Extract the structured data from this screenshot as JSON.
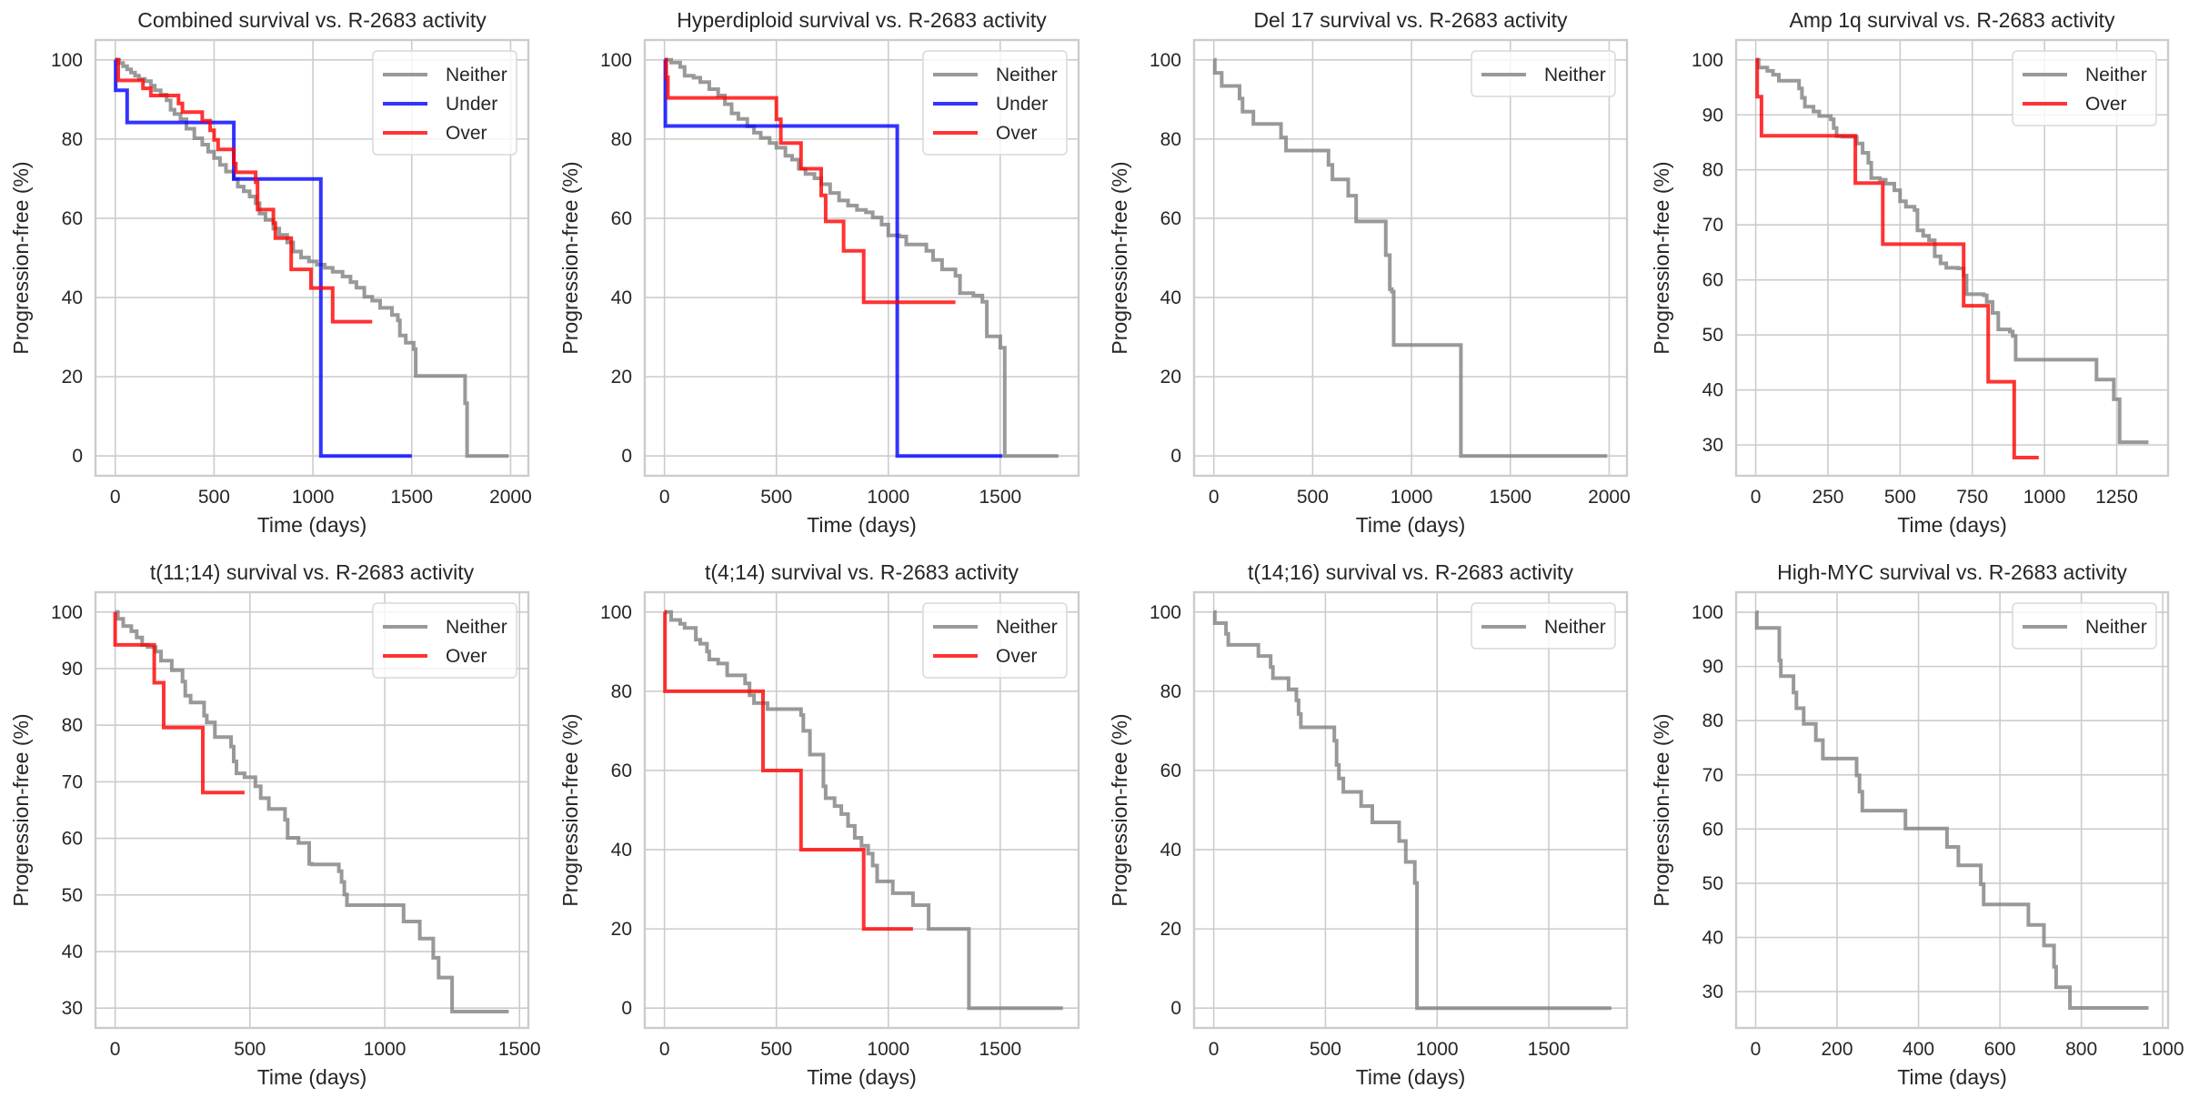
{
  "figure": {
    "background": "#ffffff",
    "series_colors": {
      "Neither": "#808080",
      "Under": "#0000ff",
      "Over": "#ff0000"
    }
  },
  "chart_data": [
    {
      "type": "line",
      "style": "step-post (Kaplan-Meier)",
      "title": "Combined survival vs. R-2683 activity",
      "xlabel": "Time (days)",
      "ylabel": "Progression-free (%)",
      "xlim": [
        -100,
        2090
      ],
      "ylim": [
        -5,
        105
      ],
      "xticks": [
        0,
        500,
        1000,
        1500,
        2000
      ],
      "yticks": [
        0,
        20,
        40,
        60,
        80,
        100
      ],
      "grid": true,
      "legend": {
        "position": "top-right",
        "entries": [
          "Neither",
          "Under",
          "Over"
        ]
      },
      "series": [
        {
          "name": "Neither",
          "x": [
            0,
            20,
            40,
            60,
            80,
            100,
            120,
            150,
            180,
            200,
            230,
            260,
            280,
            300,
            330,
            360,
            400,
            440,
            470,
            500,
            530,
            560,
            600,
            620,
            650,
            680,
            710,
            730,
            760,
            800,
            830,
            870,
            900,
            940,
            980,
            1020,
            1060,
            1100,
            1150,
            1190,
            1220,
            1260,
            1300,
            1340,
            1400,
            1430,
            1440,
            1470,
            1510,
            1520,
            1760,
            1770,
            1780,
            1990
          ],
          "y": [
            100,
            99.2,
            98.4,
            97.6,
            96.8,
            96,
            95.2,
            94.6,
            93.5,
            92.3,
            91.2,
            89.8,
            87.4,
            86.3,
            85,
            82.6,
            80.2,
            78.6,
            76.8,
            75.2,
            73.5,
            71.8,
            69.9,
            68,
            66.8,
            65.5,
            63.8,
            61.2,
            59.6,
            57.4,
            55.8,
            53.9,
            51.6,
            50.1,
            49.1,
            48.3,
            47.5,
            46.5,
            45.3,
            43.9,
            42.5,
            40.2,
            39.2,
            37.4,
            35.6,
            34.2,
            30.4,
            28.6,
            27,
            20.2,
            20.2,
            13.3,
            0,
            0
          ]
        },
        {
          "name": "Under",
          "x": [
            0,
            2,
            60,
            600,
            1040,
            1500
          ],
          "y": [
            100,
            92.3,
            84.2,
            69.9,
            0,
            0
          ]
        },
        {
          "name": "Over",
          "x": [
            0,
            15,
            140,
            180,
            320,
            340,
            440,
            480,
            500,
            520,
            600,
            610,
            710,
            720,
            800,
            810,
            890,
            990,
            1100,
            1300
          ],
          "y": [
            100,
            94.8,
            92.8,
            91,
            89,
            86.8,
            84.6,
            82.2,
            79.8,
            77.4,
            73.8,
            71.6,
            69.1,
            62.2,
            58.8,
            55,
            47.1,
            42.4,
            33.9,
            33.9
          ]
        }
      ]
    },
    {
      "type": "line",
      "style": "step-post (Kaplan-Meier)",
      "title": "Hyperdiploid survival vs. R-2683 activity",
      "xlabel": "Time (days)",
      "ylabel": "Progression-free (%)",
      "xlim": [
        -88,
        1850
      ],
      "ylim": [
        -5,
        105
      ],
      "xticks": [
        0,
        500,
        1000,
        1500
      ],
      "yticks": [
        0,
        20,
        40,
        60,
        80,
        100
      ],
      "grid": true,
      "legend": {
        "position": "top-right",
        "entries": [
          "Neither",
          "Under",
          "Over"
        ]
      },
      "series": [
        {
          "name": "Neither",
          "x": [
            0,
            30,
            70,
            90,
            130,
            160,
            200,
            240,
            270,
            300,
            330,
            370,
            400,
            430,
            470,
            500,
            540,
            570,
            600,
            630,
            670,
            700,
            740,
            780,
            820,
            860,
            900,
            930,
            970,
            1000,
            1050,
            1080,
            1130,
            1170,
            1200,
            1240,
            1300,
            1320,
            1380,
            1420,
            1440,
            1500,
            1520,
            1760
          ],
          "y": [
            100,
            99.3,
            98.2,
            96,
            95.5,
            94.4,
            92.6,
            91,
            88.8,
            86.5,
            85.1,
            83.2,
            81.6,
            80.3,
            79,
            77.8,
            75.8,
            74.8,
            72.5,
            71.2,
            70.1,
            68.6,
            66.4,
            64.5,
            63.2,
            62.1,
            61.5,
            60.2,
            58.4,
            55.7,
            55.4,
            53.4,
            53.4,
            51.8,
            49.5,
            47.1,
            45.5,
            41.1,
            40.5,
            38.9,
            30.2,
            27.3,
            0,
            0
          ]
        },
        {
          "name": "Under",
          "x": [
            0,
            4,
            1040,
            1510
          ],
          "y": [
            100,
            83.3,
            0,
            0
          ]
        },
        {
          "name": "Over",
          "x": [
            0,
            8,
            15,
            500,
            520,
            610,
            700,
            720,
            800,
            890,
            1300
          ],
          "y": [
            100,
            95.6,
            90.4,
            85,
            79,
            72.5,
            65.8,
            59.2,
            51.8,
            38.8,
            38.8
          ]
        }
      ]
    },
    {
      "type": "line",
      "style": "step-post (Kaplan-Meier)",
      "title": "Del 17 survival vs. R-2683 activity",
      "xlabel": "Time (days)",
      "ylabel": "Progression-free (%)",
      "xlim": [
        -100,
        2090
      ],
      "ylim": [
        -5,
        105
      ],
      "xticks": [
        0,
        500,
        1000,
        1500,
        2000
      ],
      "yticks": [
        0,
        20,
        40,
        60,
        80,
        100
      ],
      "grid": true,
      "legend": {
        "position": "top-right",
        "entries": [
          "Neither"
        ]
      },
      "series": [
        {
          "name": "Neither",
          "x": [
            0,
            5,
            40,
            130,
            145,
            200,
            340,
            365,
            580,
            600,
            680,
            720,
            870,
            890,
            900,
            910,
            1250,
            1990
          ],
          "y": [
            100,
            96.7,
            93.4,
            90.2,
            86.9,
            83.8,
            80.4,
            77.1,
            73.5,
            69.8,
            65.7,
            59.2,
            50.7,
            42.1,
            41.5,
            28,
            0,
            0
          ]
        }
      ]
    },
    {
      "type": "line",
      "style": "step-post (Kaplan-Meier)",
      "title": "Amp 1q survival vs. R-2683 activity",
      "xlabel": "Time (days)",
      "ylabel": "Progression-free (%)",
      "xlim": [
        -68,
        1428
      ],
      "ylim": [
        24.4,
        103.6
      ],
      "xticks": [
        0,
        250,
        500,
        750,
        1000,
        1250
      ],
      "yticks": [
        30,
        40,
        50,
        60,
        70,
        80,
        90,
        100
      ],
      "grid": true,
      "legend": {
        "position": "top-right",
        "entries": [
          "Neither",
          "Over"
        ]
      },
      "series": [
        {
          "name": "Neither",
          "x": [
            0,
            10,
            40,
            60,
            80,
            150,
            160,
            170,
            200,
            220,
            260,
            270,
            280,
            300,
            350,
            370,
            390,
            400,
            430,
            450,
            480,
            500,
            520,
            550,
            560,
            580,
            600,
            620,
            640,
            660,
            700,
            720,
            730,
            790,
            800,
            820,
            840,
            880,
            890,
            900,
            1180,
            1240,
            1260,
            1360
          ],
          "y": [
            100,
            98.6,
            98,
            97.3,
            96.2,
            94.8,
            93.1,
            91.5,
            90.6,
            89.8,
            89.2,
            87.6,
            86.1,
            86,
            84.8,
            83.1,
            81.3,
            78.5,
            78.2,
            77.5,
            76.3,
            74.3,
            73.3,
            72.7,
            69,
            68,
            67.2,
            64.3,
            63,
            62.2,
            62.1,
            60.8,
            57.4,
            57.2,
            56,
            54,
            51,
            50.6,
            49.8,
            45.5,
            41.9,
            38.3,
            30.5,
            30.5
          ]
        },
        {
          "name": "Over",
          "x": [
            0,
            5,
            20,
            345,
            440,
            720,
            805,
            895,
            980
          ],
          "y": [
            100,
            93.3,
            86.2,
            77.6,
            66.5,
            55.3,
            41.5,
            27.7,
            27.7
          ]
        }
      ]
    },
    {
      "type": "line",
      "style": "step-post (Kaplan-Meier)",
      "title": "t(11;14) survival vs. R-2683 activity",
      "xlabel": "Time (days)",
      "ylabel": "Progression-free (%)",
      "xlim": [
        -73,
        1533
      ],
      "ylim": [
        26.5,
        103.5
      ],
      "xticks": [
        0,
        500,
        1000,
        1500
      ],
      "yticks": [
        30,
        40,
        50,
        60,
        70,
        80,
        90,
        100
      ],
      "grid": true,
      "legend": {
        "position": "top-right",
        "entries": [
          "Neither",
          "Over"
        ]
      },
      "series": [
        {
          "name": "Neither",
          "x": [
            0,
            10,
            30,
            60,
            80,
            100,
            120,
            150,
            170,
            210,
            250,
            260,
            280,
            330,
            340,
            370,
            380,
            430,
            440,
            450,
            480,
            520,
            540,
            570,
            630,
            640,
            680,
            720,
            730,
            830,
            840,
            850,
            860,
            870,
            1070,
            1130,
            1180,
            1200,
            1250,
            1460
          ],
          "y": [
            100,
            98.8,
            97.5,
            96.6,
            95.5,
            94.2,
            93.8,
            93,
            91.4,
            89.7,
            87.7,
            85.2,
            84,
            81.7,
            80.5,
            77.9,
            77.9,
            76.2,
            73.6,
            71.5,
            70.8,
            69.2,
            67.1,
            65.2,
            63.3,
            60.1,
            59.2,
            55.5,
            55.4,
            54.2,
            52.3,
            50.1,
            48.2,
            48.2,
            45.3,
            42.3,
            38.9,
            35.4,
            29.4,
            29.4
          ]
        },
        {
          "name": "Over",
          "x": [
            0,
            145,
            180,
            325,
            480
          ],
          "y": [
            94.2,
            87.5,
            79.6,
            68.1,
            68.1
          ]
        }
      ]
    },
    {
      "type": "line",
      "style": "step-post (Kaplan-Meier)",
      "title": "t(4;14) survival vs. R-2683 activity",
      "xlabel": "Time (days)",
      "ylabel": "Progression-free (%)",
      "xlim": [
        -88,
        1850
      ],
      "ylim": [
        -5,
        105
      ],
      "xticks": [
        0,
        500,
        1000,
        1500
      ],
      "yticks": [
        0,
        20,
        40,
        60,
        80,
        100
      ],
      "grid": true,
      "legend": {
        "position": "top-right",
        "entries": [
          "Neither",
          "Over"
        ]
      },
      "series": [
        {
          "name": "Neither",
          "x": [
            0,
            30,
            70,
            90,
            130,
            140,
            160,
            190,
            200,
            240,
            280,
            340,
            360,
            380,
            400,
            440,
            460,
            600,
            610,
            620,
            650,
            700,
            710,
            720,
            760,
            790,
            820,
            850,
            880,
            910,
            930,
            950,
            1020,
            1110,
            1180,
            1360,
            1780
          ],
          "y": [
            100,
            98,
            97,
            96,
            96,
            93,
            92,
            90,
            88,
            87,
            84,
            84,
            82,
            79,
            77,
            77,
            75.5,
            75.5,
            74,
            70,
            64,
            64,
            56,
            53,
            51,
            49,
            46,
            43,
            41,
            39,
            36,
            32,
            29,
            26,
            20,
            0,
            0
          ]
        },
        {
          "name": "Over",
          "x": [
            0,
            2,
            440,
            610,
            890,
            1110
          ],
          "y": [
            100,
            80,
            60,
            40,
            20,
            20
          ]
        }
      ]
    },
    {
      "type": "line",
      "style": "step-post (Kaplan-Meier)",
      "title": "t(14;16) survival vs. R-2683 activity",
      "xlabel": "Time (days)",
      "ylabel": "Progression-free (%)",
      "xlim": [
        -88,
        1850
      ],
      "ylim": [
        -5,
        105
      ],
      "xticks": [
        0,
        500,
        1000,
        1500
      ],
      "yticks": [
        0,
        20,
        40,
        60,
        80,
        100
      ],
      "grid": true,
      "legend": {
        "position": "top-right",
        "entries": [
          "Neither"
        ]
      },
      "series": [
        {
          "name": "Neither",
          "x": [
            0,
            5,
            55,
            65,
            200,
            255,
            265,
            335,
            370,
            380,
            390,
            540,
            550,
            560,
            580,
            590,
            660,
            710,
            830,
            860,
            900,
            910,
            1780
          ],
          "y": [
            100,
            97.2,
            94.5,
            91.7,
            88.9,
            86.1,
            83.3,
            80.5,
            77.7,
            74.3,
            70.9,
            67.5,
            61.4,
            58,
            54.6,
            54.6,
            51,
            46.9,
            42.2,
            36.9,
            31.6,
            0,
            0
          ]
        }
      ]
    },
    {
      "type": "line",
      "style": "step-post (Kaplan-Meier)",
      "title": "High-MYC survival vs. R-2683 activity",
      "xlabel": "Time (days)",
      "ylabel": "Progression-free (%)",
      "xlim": [
        -48,
        1013
      ],
      "ylim": [
        23.3,
        103.7
      ],
      "xticks": [
        0,
        200,
        400,
        600,
        800,
        1000
      ],
      "yticks": [
        30,
        40,
        50,
        60,
        70,
        80,
        90,
        100
      ],
      "grid": true,
      "legend": {
        "position": "top-right",
        "entries": [
          "Neither"
        ]
      },
      "series": [
        {
          "name": "Neither",
          "x": [
            0,
            3,
            58,
            62,
            93,
            100,
            118,
            148,
            165,
            248,
            255,
            262,
            368,
            470,
            498,
            553,
            560,
            670,
            708,
            733,
            738,
            772,
            965
          ],
          "y": [
            100,
            97.1,
            91.1,
            88.2,
            85.2,
            82.3,
            79.4,
            76.4,
            73,
            69.9,
            66.9,
            63.4,
            60.1,
            56.7,
            53.3,
            49.8,
            46.1,
            42.3,
            38.5,
            34.6,
            30.8,
            27,
            27
          ]
        }
      ]
    }
  ]
}
